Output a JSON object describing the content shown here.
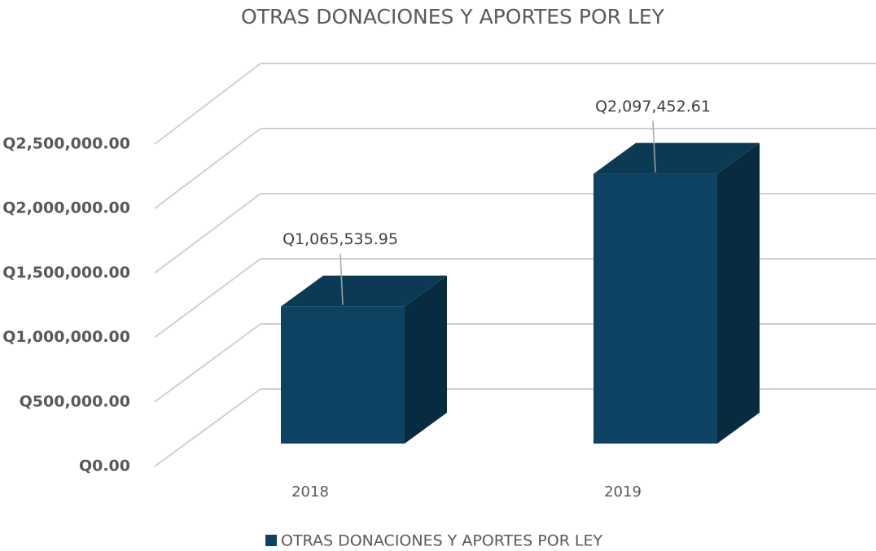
{
  "chart_data": {
    "type": "bar3d",
    "title": "OTRAS DONACIONES Y APORTES POR LEY",
    "categories": [
      "2018",
      "2019"
    ],
    "series": [
      {
        "name": "OTRAS DONACIONES Y APORTES POR LEY",
        "color": "#0e4263",
        "values": [
          1065535.95,
          2097452.61
        ],
        "value_labels": [
          "Q1,065,535.95",
          "Q2,097,452.61"
        ]
      }
    ],
    "ylim": [
      0,
      2500000
    ],
    "yticks": [
      {
        "value": 0,
        "label": "Q0.00"
      },
      {
        "value": 500000,
        "label": "Q500,000.00"
      },
      {
        "value": 1000000,
        "label": "Q1,000,000.00"
      },
      {
        "value": 1500000,
        "label": "Q1,500,000.00"
      },
      {
        "value": 2000000,
        "label": "Q2,000,000.00"
      },
      {
        "value": 2500000,
        "label": "Q2,500,000.00"
      }
    ],
    "grid": true,
    "legend": "bottom"
  }
}
